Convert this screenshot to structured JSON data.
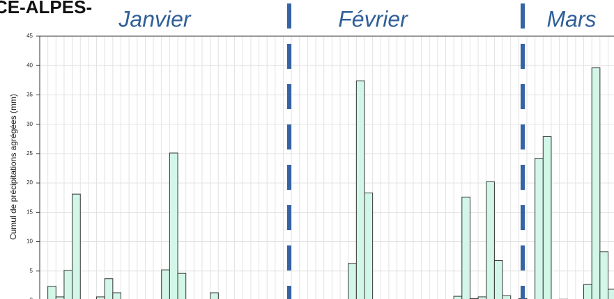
{
  "chart_data": {
    "type": "bar",
    "title": "CE-ALPES-",
    "ylabel": "Cumul de précipitations agrégées (mm)",
    "annotations": [
      "Janvier",
      "Février",
      "Mars"
    ],
    "categories": [
      null,
      null,
      null,
      null,
      null,
      null,
      null,
      null,
      null,
      null,
      null,
      null,
      null,
      null,
      null,
      null,
      null,
      null,
      null,
      null,
      null,
      null,
      null,
      null,
      null,
      null,
      null,
      null,
      null,
      null,
      null,
      null,
      null,
      null,
      null,
      null,
      null,
      null,
      null,
      null,
      null,
      null,
      null,
      null,
      null,
      null,
      null,
      null,
      null,
      null,
      null,
      null,
      null,
      null,
      null,
      null,
      null,
      null,
      null,
      null,
      null,
      null,
      null,
      null,
      null,
      null,
      null,
      null,
      null,
      null,
      null
    ],
    "values": [
      0,
      2.4,
      0.6,
      5.1,
      18.1,
      0,
      0,
      0.6,
      3.7,
      1.3,
      0,
      0,
      0,
      0,
      0,
      5.2,
      25.1,
      4.6,
      0,
      0,
      0,
      1.3,
      0,
      0,
      0,
      0,
      0,
      0,
      0,
      0,
      0,
      0,
      0,
      0,
      0,
      0,
      0,
      0,
      6.3,
      37.4,
      18.3,
      0,
      0,
      0,
      0,
      0,
      0,
      0,
      0,
      0,
      0,
      0.7,
      17.6,
      0.3,
      0.6,
      20.2,
      6.8,
      0.8,
      0,
      0.3,
      0,
      24.2,
      27.9,
      0,
      0.2,
      0,
      0,
      2.7,
      39.6,
      8.3,
      1.9
    ],
    "color": "#d2f7e8",
    "ylim": [
      0,
      45
    ],
    "yticks": [
      0,
      5,
      10,
      15,
      20,
      25,
      30,
      35,
      40,
      45
    ],
    "grid": true
  }
}
